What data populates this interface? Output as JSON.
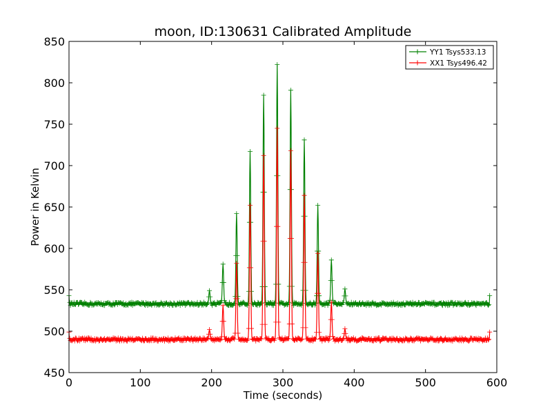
{
  "chart_data": {
    "type": "line",
    "title": "moon, ID:130631 Calibrated Amplitude",
    "xlabel": "Time (seconds)",
    "ylabel": "Power in Kelvin",
    "xlim": [
      0,
      600
    ],
    "ylim": [
      450,
      850
    ],
    "xticks": [
      0,
      100,
      200,
      300,
      400,
      500,
      600
    ],
    "yticks": [
      450,
      500,
      550,
      600,
      650,
      700,
      750,
      800,
      850
    ],
    "x_tick_labels": [
      "0",
      "100",
      "200",
      "300",
      "400",
      "500",
      "600"
    ],
    "y_tick_labels": [
      "450",
      "500",
      "550",
      "600",
      "650",
      "700",
      "750",
      "800",
      "850"
    ],
    "grid": false,
    "legend_position": "top-right",
    "marker": "plus",
    "x_range_data": [
      0,
      590
    ],
    "series": [
      {
        "name": "YY1 Tsys533.13",
        "color": "#008000",
        "baseline": 533,
        "end_values": [
          543,
          543
        ],
        "peaks": [
          {
            "x": 197,
            "y": 549
          },
          {
            "x": 216,
            "y": 581
          },
          {
            "x": 235,
            "y": 642
          },
          {
            "x": 254,
            "y": 717
          },
          {
            "x": 273,
            "y": 785
          },
          {
            "x": 292,
            "y": 822
          },
          {
            "x": 311,
            "y": 791
          },
          {
            "x": 330,
            "y": 731
          },
          {
            "x": 349,
            "y": 652
          },
          {
            "x": 368,
            "y": 586
          },
          {
            "x": 387,
            "y": 551
          }
        ]
      },
      {
        "name": "XX1 Tsys496.42",
        "color": "#ff0000",
        "baseline": 490,
        "end_values": [
          499,
          499
        ],
        "peaks": [
          {
            "x": 197,
            "y": 502
          },
          {
            "x": 216,
            "y": 531
          },
          {
            "x": 235,
            "y": 582
          },
          {
            "x": 254,
            "y": 652
          },
          {
            "x": 273,
            "y": 712
          },
          {
            "x": 292,
            "y": 745
          },
          {
            "x": 311,
            "y": 718
          },
          {
            "x": 330,
            "y": 664
          },
          {
            "x": 349,
            "y": 594
          },
          {
            "x": 368,
            "y": 535
          },
          {
            "x": 387,
            "y": 503
          }
        ]
      }
    ]
  }
}
